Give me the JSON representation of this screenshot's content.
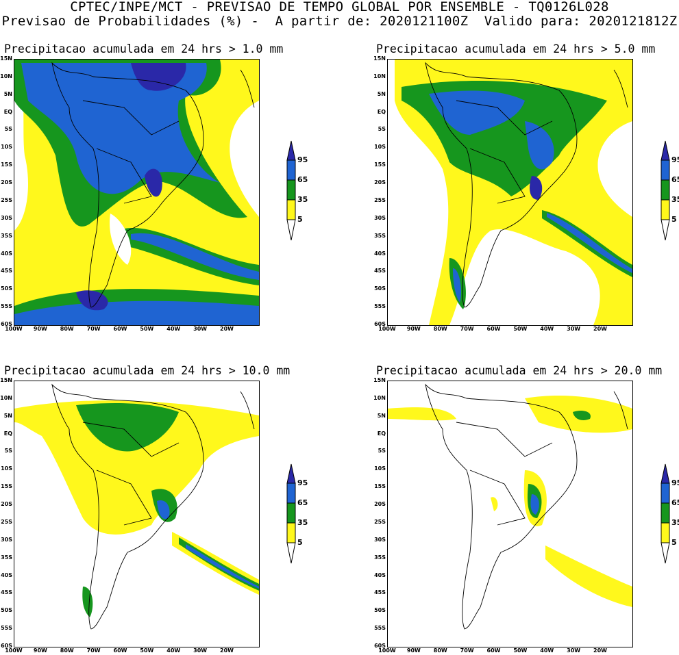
{
  "header": {
    "line1": "CPTEC/INPE/MCT - PREVISAO DE TEMPO GLOBAL POR ENSEMBLE - TQ0126L028",
    "line2": "Previsao de Probabilidades (%) -  A partir de: 2020121100Z  Valido para: 2020121812Z"
  },
  "axes": {
    "lat_labels": [
      "15N",
      "10N",
      "5N",
      "EQ",
      "5S",
      "10S",
      "15S",
      "20S",
      "25S",
      "30S",
      "35S",
      "40S",
      "45S",
      "50S",
      "55S",
      "60S"
    ],
    "lon_labels": [
      "100W",
      "90W",
      "80W",
      "70W",
      "60W",
      "50W",
      "40W",
      "30W",
      "20W"
    ]
  },
  "legend": {
    "labels": [
      "95",
      "65",
      "35",
      "5"
    ],
    "colors": {
      "95": "#2a28a8",
      "65": "#1f64d2",
      "35": "#16961e",
      "5": "#fff81c",
      "none": "#ffffff"
    }
  },
  "panels": [
    {
      "title": "Precipitacao acumulada em 24 hrs > 1.0 mm"
    },
    {
      "title": "Precipitacao acumulada em 24 hrs > 5.0 mm"
    },
    {
      "title": "Precipitacao acumulada em 24 hrs > 10.0 mm"
    },
    {
      "title": "Precipitacao acumulada em 24 hrs > 20.0 mm"
    }
  ]
}
